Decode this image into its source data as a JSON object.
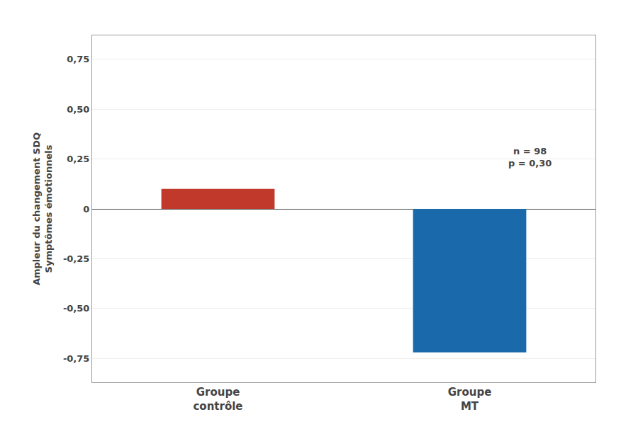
{
  "chart_data": {
    "type": "bar",
    "categories": [
      "Groupe\ncontrôle",
      "Groupe\nMT"
    ],
    "values": [
      0.1,
      -0.72
    ],
    "colors": [
      "#c0392b",
      "#1a6aab"
    ],
    "ylabel": "Ampleur du changement SDQ\nSymptômes émotionnels",
    "annotation": "n = 98\np = 0,30",
    "ylim": [
      -0.87,
      0.87
    ],
    "yticks": [
      {
        "value": -0.75,
        "label": "-0,75"
      },
      {
        "value": -0.5,
        "label": "-0,50"
      },
      {
        "value": -0.25,
        "label": "-0,25"
      },
      0,
      {
        "value": 0.25,
        "label": "0,25"
      },
      {
        "value": 0.5,
        "label": "0,50"
      },
      {
        "value": 0.75,
        "label": "0,75"
      }
    ],
    "grid": true
  }
}
